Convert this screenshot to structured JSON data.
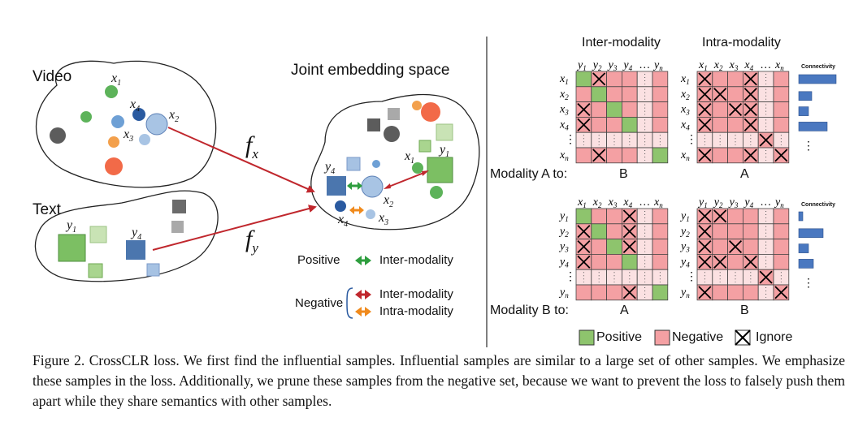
{
  "left": {
    "video_label": "Video",
    "text_label": "Text",
    "joint_label": "Joint embedding space",
    "fx": "f",
    "fx_sub": "x",
    "fy": "f",
    "fy_sub": "y",
    "video_points": [
      "x1",
      "x4",
      "x2",
      "x3"
    ],
    "text_points": [
      "y1",
      "y4"
    ],
    "joint_points": [
      "y4",
      "x1",
      "y1",
      "x2",
      "x4",
      "x3"
    ],
    "legend": {
      "positive": "Positive",
      "negative": "Negative",
      "inter": "Inter-modality",
      "intra": "Intra-modality"
    },
    "colors": {
      "green": "#2e9e3e",
      "red": "#c0272d",
      "orange": "#f08a1c"
    }
  },
  "right": {
    "col_inter": "Inter-modality",
    "col_intra": "Intra-modality",
    "connectivity": "Connectivity",
    "row_a": "Modality A to:",
    "row_b": "Modality B to:",
    "sub_b": "B",
    "sub_a": "A",
    "sub_a2": "A",
    "sub_b2": "B",
    "legend_positive": "Positive",
    "legend_negative": "Negative",
    "legend_ignore": "Ignore",
    "colors": {
      "positive": "#8ec46d",
      "negative": "#f4a0a3",
      "connectivity": "#4a78c0"
    }
  },
  "caption": "Figure 2. CrossCLR loss. We first find the influential samples. Influential samples are similar to a large set of other samples. We emphasize these samples in the loss. Additionally, we prune these samples from the negative set, because we want to prevent the loss to falsely push them apart while they share semantics with other samples."
}
